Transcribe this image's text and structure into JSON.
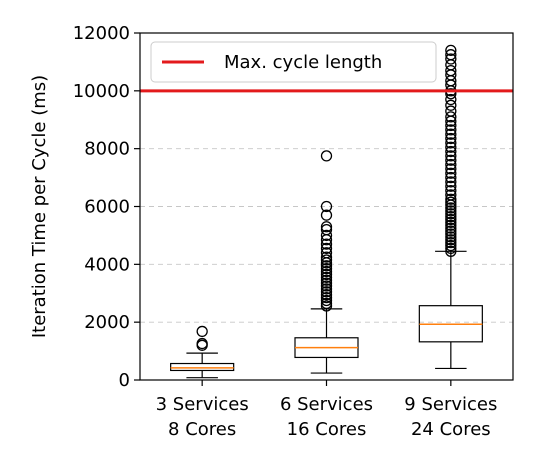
{
  "chart_data": {
    "type": "boxplot",
    "title": "",
    "xlabel": "",
    "ylabel": "Iteration Time per Cycle (ms)",
    "ylim": [
      0,
      12000
    ],
    "yticks": [
      0,
      2000,
      4000,
      6000,
      8000,
      10000,
      12000
    ],
    "grid": "horizontal dashed",
    "categories": [
      {
        "line1": "3 Services",
        "line2": "8 Cores"
      },
      {
        "line1": "6 Services",
        "line2": "16 Cores"
      },
      {
        "line1": "9 Services",
        "line2": "24 Cores"
      }
    ],
    "boxes": [
      {
        "whisker_low": 80,
        "q1": 330,
        "median": 420,
        "q3": 570,
        "whisker_high": 930,
        "outliers": [
          1200,
          1260,
          1680
        ]
      },
      {
        "whisker_low": 240,
        "q1": 780,
        "median": 1120,
        "q3": 1460,
        "whisker_high": 2460,
        "outliers": [
          2560,
          2650,
          2750,
          2850,
          2950,
          3050,
          3150,
          3250,
          3350,
          3450,
          3550,
          3650,
          3750,
          3850,
          3950,
          4050,
          4150,
          4250,
          4400,
          4550,
          4700,
          4850,
          5000,
          5200,
          5300,
          5700,
          6000,
          7750
        ]
      },
      {
        "whisker_low": 400,
        "q1": 1320,
        "median": 1930,
        "q3": 2570,
        "whisker_high": 4450,
        "outliers": [
          4450,
          4550,
          4650,
          4750,
          4850,
          4950,
          5050,
          5150,
          5250,
          5350,
          5450,
          5550,
          5650,
          5750,
          5850,
          5950,
          6050,
          6150,
          6250,
          6400,
          6550,
          6700,
          6850,
          7000,
          7150,
          7300,
          7450,
          7600,
          7750,
          7900,
          8050,
          8200,
          8350,
          8500,
          8650,
          8800,
          8950,
          9100,
          9300,
          9500,
          9700,
          9900,
          10000,
          10200,
          10350,
          10550,
          10700,
          10900,
          11100,
          11250,
          11400
        ]
      }
    ],
    "reference_line": {
      "label": "Max. cycle length",
      "value": 10000,
      "color": "#e31a1c"
    },
    "colors": {
      "median": "#ff7f0e",
      "box": "#000000",
      "grid": "#b0b0b0"
    },
    "legend_position": "top-left"
  }
}
